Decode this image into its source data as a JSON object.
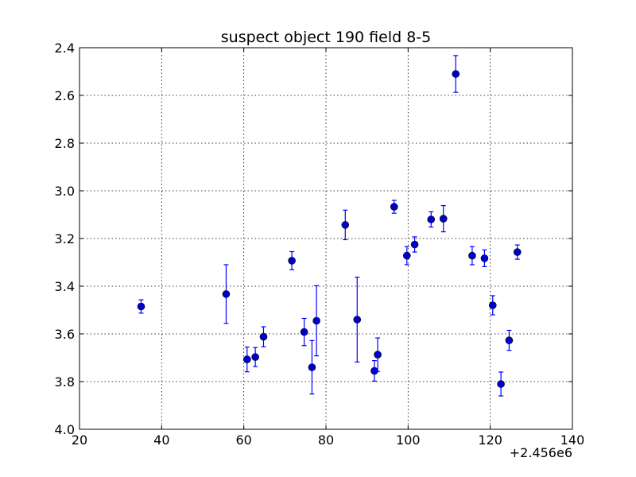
{
  "chart_data": {
    "type": "scatter",
    "title": "suspect object 190 field 8-5",
    "xlabel": "",
    "ylabel": "",
    "x_offset_label": "+2.456e6",
    "xlim": [
      20,
      140
    ],
    "ylim": [
      4.0,
      2.4
    ],
    "y_inverted": true,
    "x_ticks": [
      20,
      40,
      60,
      80,
      100,
      120,
      140
    ],
    "x_tick_labels": [
      "20",
      "40",
      "60",
      "80",
      "100",
      "120",
      "140"
    ],
    "y_ticks": [
      2.4,
      2.6,
      2.8,
      3.0,
      3.2,
      3.4,
      3.6,
      3.8,
      4.0
    ],
    "y_tick_labels": [
      "2.4",
      "2.6",
      "2.8",
      "3.0",
      "3.2",
      "3.4",
      "3.6",
      "3.8",
      "4.0"
    ],
    "grid": true,
    "legend": "none",
    "color": "#0000ff",
    "marker_color": "#0000cc",
    "points": [
      {
        "x": 35.0,
        "y": 3.485,
        "err": 0.028
      },
      {
        "x": 55.7,
        "y": 3.433,
        "err": 0.123
      },
      {
        "x": 60.8,
        "y": 3.707,
        "err": 0.052
      },
      {
        "x": 62.8,
        "y": 3.697,
        "err": 0.04
      },
      {
        "x": 64.8,
        "y": 3.612,
        "err": 0.042
      },
      {
        "x": 71.7,
        "y": 3.293,
        "err": 0.038
      },
      {
        "x": 74.7,
        "y": 3.592,
        "err": 0.057
      },
      {
        "x": 76.6,
        "y": 3.74,
        "err": 0.112
      },
      {
        "x": 77.7,
        "y": 3.545,
        "err": 0.147
      },
      {
        "x": 84.7,
        "y": 3.143,
        "err": 0.062
      },
      {
        "x": 87.6,
        "y": 3.54,
        "err": 0.178
      },
      {
        "x": 91.8,
        "y": 3.755,
        "err": 0.043
      },
      {
        "x": 92.6,
        "y": 3.687,
        "err": 0.07
      },
      {
        "x": 96.6,
        "y": 3.067,
        "err": 0.027
      },
      {
        "x": 99.7,
        "y": 3.272,
        "err": 0.038
      },
      {
        "x": 101.6,
        "y": 3.225,
        "err": 0.032
      },
      {
        "x": 105.6,
        "y": 3.12,
        "err": 0.032
      },
      {
        "x": 108.6,
        "y": 3.117,
        "err": 0.055
      },
      {
        "x": 111.6,
        "y": 2.51,
        "err": 0.077
      },
      {
        "x": 115.6,
        "y": 3.272,
        "err": 0.038
      },
      {
        "x": 118.6,
        "y": 3.283,
        "err": 0.035
      },
      {
        "x": 120.6,
        "y": 3.48,
        "err": 0.04
      },
      {
        "x": 122.6,
        "y": 3.81,
        "err": 0.05
      },
      {
        "x": 124.6,
        "y": 3.627,
        "err": 0.042
      },
      {
        "x": 126.6,
        "y": 3.257,
        "err": 0.03
      }
    ]
  }
}
